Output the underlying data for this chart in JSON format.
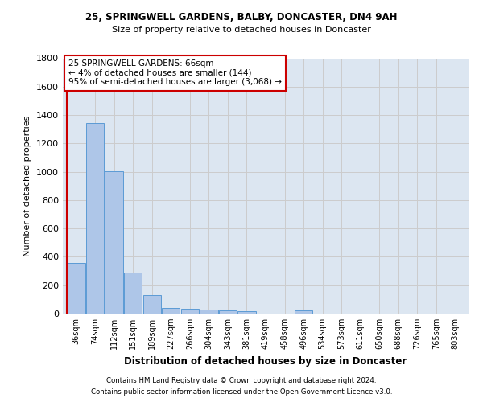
{
  "title_line1": "25, SPRINGWELL GARDENS, BALBY, DONCASTER, DN4 9AH",
  "title_line2": "Size of property relative to detached houses in Doncaster",
  "xlabel": "Distribution of detached houses by size in Doncaster",
  "ylabel": "Number of detached properties",
  "bar_labels": [
    "36sqm",
    "74sqm",
    "112sqm",
    "151sqm",
    "189sqm",
    "227sqm",
    "266sqm",
    "304sqm",
    "343sqm",
    "381sqm",
    "419sqm",
    "458sqm",
    "496sqm",
    "534sqm",
    "573sqm",
    "611sqm",
    "650sqm",
    "688sqm",
    "726sqm",
    "765sqm",
    "803sqm"
  ],
  "bar_values": [
    355,
    1345,
    1005,
    290,
    128,
    42,
    35,
    28,
    22,
    18,
    0,
    0,
    22,
    0,
    0,
    0,
    0,
    0,
    0,
    0,
    0
  ],
  "bar_color": "#aec6e8",
  "bar_edge_color": "#5b9bd5",
  "annotation_text": "25 SPRINGWELL GARDENS: 66sqm\n← 4% of detached houses are smaller (144)\n95% of semi-detached houses are larger (3,068) →",
  "annotation_box_color": "#ffffff",
  "annotation_box_edge": "#cc0000",
  "vline_color": "#cc0000",
  "ylim": [
    0,
    1800
  ],
  "yticks": [
    0,
    200,
    400,
    600,
    800,
    1000,
    1200,
    1400,
    1600,
    1800
  ],
  "grid_color": "#cccccc",
  "bg_color": "#dce6f1",
  "footer_line1": "Contains HM Land Registry data © Crown copyright and database right 2024.",
  "footer_line2": "Contains public sector information licensed under the Open Government Licence v3.0."
}
